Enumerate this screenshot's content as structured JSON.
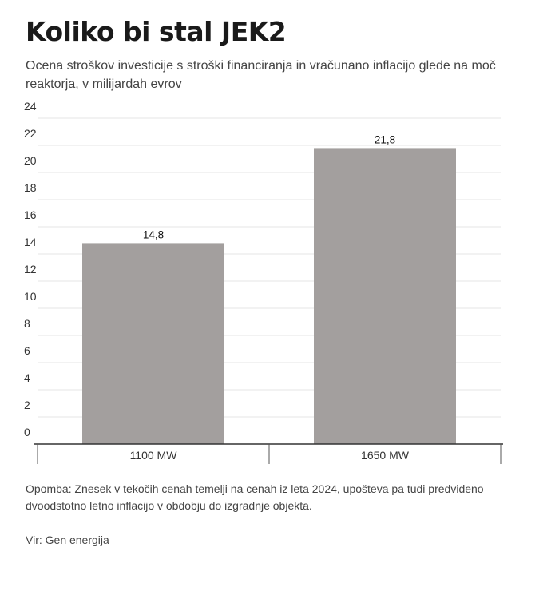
{
  "chart_data": {
    "type": "bar",
    "title": "Koliko bi stal JEK2",
    "subtitle": "Ocena stroškov investicije s stroški financiranja in vračunano inflacijo glede na moč reaktorja, v milijardah evrov",
    "categories": [
      "1100 MW",
      "1650 MW"
    ],
    "values": [
      14.8,
      21.8
    ],
    "value_labels": [
      "14,8",
      "21,8"
    ],
    "ylim": [
      0,
      24
    ],
    "yticks": [
      0,
      2,
      4,
      6,
      8,
      10,
      12,
      14,
      16,
      18,
      20,
      22,
      24
    ],
    "grid": true,
    "bar_color": "#a39f9e",
    "grid_color": "#e6e6e6",
    "axis_color": "#333333"
  },
  "footer": {
    "note": "Opomba: Znesek v tekočih cenah temelji na cenah iz leta 2024, upošteva pa tudi predvideno dvoodstotno letno inflacijo v obdobju do izgradnje objekta.",
    "source": "Vir: Gen energija"
  }
}
